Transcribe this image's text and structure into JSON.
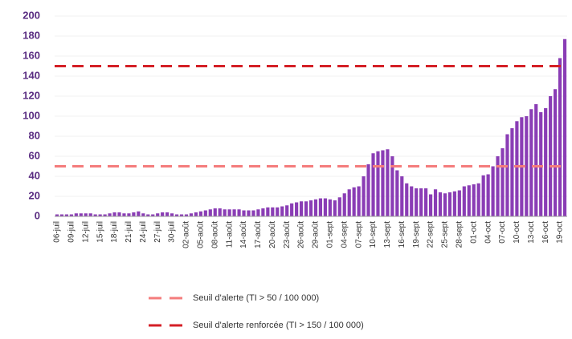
{
  "chart_data": {
    "type": "bar",
    "color": "#8a3db5",
    "categories": [
      "06-juil",
      null,
      null,
      "09-juil",
      null,
      null,
      "12-juil",
      null,
      null,
      "15-juil",
      null,
      null,
      "18-juil",
      null,
      null,
      "21-juil",
      null,
      null,
      "24-juil",
      null,
      null,
      "27-juil",
      null,
      null,
      "30-juil",
      null,
      null,
      "02-août",
      null,
      null,
      "05-août",
      null,
      null,
      "08-août",
      null,
      null,
      "11-août",
      null,
      null,
      "14-août",
      null,
      null,
      "17-août",
      null,
      null,
      "20-août",
      null,
      null,
      "23-août",
      null,
      null,
      "26-août",
      null,
      null,
      "29-août",
      null,
      null,
      "01-sept",
      null,
      null,
      "04-sept",
      null,
      null,
      "07-sept",
      null,
      null,
      "10-sept",
      null,
      null,
      "13-sept",
      null,
      null,
      "16-sept",
      null,
      null,
      "19-sept",
      null,
      null,
      "22-sept",
      null,
      null,
      "25-sept",
      null,
      null,
      "28-sept",
      null,
      null,
      "01-oct",
      null,
      null,
      "04-oct",
      null,
      null,
      "07-oct",
      null,
      null,
      "10-oct",
      null,
      null,
      "13-oct",
      null,
      null,
      "16-oct",
      null,
      null,
      "19-oct",
      null
    ],
    "values": [
      2,
      2,
      2,
      2,
      3,
      3,
      3,
      3,
      2,
      2,
      2,
      3,
      4,
      4,
      3,
      3,
      4,
      5,
      3,
      2,
      2,
      3,
      4,
      4,
      3,
      2,
      2,
      2,
      3,
      4,
      5,
      6,
      7,
      8,
      8,
      7,
      7,
      7,
      7,
      6,
      6,
      6,
      7,
      8,
      9,
      9,
      9,
      10,
      11,
      13,
      14,
      15,
      15,
      16,
      17,
      18,
      18,
      17,
      16,
      19,
      23,
      27,
      29,
      30,
      40,
      52,
      63,
      65,
      66,
      67,
      60,
      46,
      40,
      33,
      30,
      28,
      28,
      28,
      22,
      27,
      24,
      23,
      24,
      25,
      26,
      30,
      31,
      32,
      33,
      41,
      42,
      50,
      60,
      68,
      82,
      88,
      95,
      99,
      100,
      107,
      112,
      104,
      108,
      120,
      127,
      158,
      177
    ],
    "ylim": [
      0,
      200
    ],
    "yticks": [
      0,
      20,
      40,
      60,
      80,
      100,
      120,
      140,
      160,
      180,
      200
    ],
    "reference_lines": [
      {
        "name": "Seuil d'alerte (TI > 50 / 100 000)",
        "value": 50,
        "color": "#f47c7c"
      },
      {
        "name": "Seuil d'alerte renforcée (TI > 150 / 100 000)",
        "value": 150,
        "color": "#d41f26"
      }
    ]
  }
}
